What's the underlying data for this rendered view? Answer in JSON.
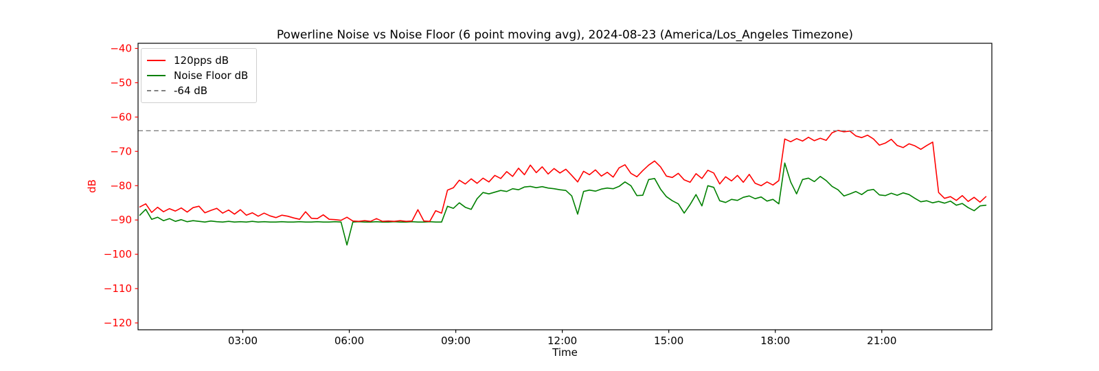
{
  "figure": {
    "title": "Powerline Noise vs Noise Floor (6 point moving avg), 2024-08-23 (America/Los_Angeles Timezone)"
  },
  "chart_data": {
    "type": "line",
    "title": "Powerline Noise vs Noise Floor (6 point moving avg), 2024-08-23 (America/Los_Angeles Timezone)",
    "xlabel": "Time",
    "ylabel": "dB",
    "grid": false,
    "legend_position": "upper left",
    "xlim_hours": [
      0.05,
      24.1
    ],
    "ylim": [
      -122,
      -38.5
    ],
    "x_ticks": [
      {
        "hour": 3,
        "label": "03:00"
      },
      {
        "hour": 6,
        "label": "06:00"
      },
      {
        "hour": 9,
        "label": "09:00"
      },
      {
        "hour": 12,
        "label": "12:00"
      },
      {
        "hour": 15,
        "label": "15:00"
      },
      {
        "hour": 18,
        "label": "18:00"
      },
      {
        "hour": 21,
        "label": "21:00"
      }
    ],
    "y_ticks": [
      {
        "value": -40,
        "label": "−40"
      },
      {
        "value": -50,
        "label": "−50"
      },
      {
        "value": -60,
        "label": "−60"
      },
      {
        "value": -70,
        "label": "−70"
      },
      {
        "value": -80,
        "label": "−80"
      },
      {
        "value": -90,
        "label": "−90"
      },
      {
        "value": -100,
        "label": "−100"
      },
      {
        "value": -110,
        "label": "−110"
      },
      {
        "value": -120,
        "label": "−120"
      }
    ],
    "y_axis_color": "#ff0000",
    "x_axis_color": "#000000",
    "reference_line": {
      "value": -64,
      "label": "-64 dB",
      "color": "#808080",
      "style": "dashed"
    },
    "t_start_hours": 0.1,
    "sample_interval_minutes": 10,
    "series": [
      {
        "name": "Noise Floor dB",
        "color": "#008000",
        "values": [
          -88.6,
          -86.9,
          -89.8,
          -89.2,
          -90.2,
          -89.6,
          -90.4,
          -89.9,
          -90.5,
          -90.2,
          -90.4,
          -90.6,
          -90.3,
          -90.5,
          -90.6,
          -90.4,
          -90.6,
          -90.5,
          -90.6,
          -90.4,
          -90.6,
          -90.5,
          -90.6,
          -90.6,
          -90.5,
          -90.6,
          -90.6,
          -90.5,
          -90.6,
          -90.6,
          -90.5,
          -90.6,
          -90.6,
          -90.5,
          -90.6,
          -97.3,
          -90.6,
          -90.5,
          -90.6,
          -90.6,
          -90.5,
          -90.6,
          -90.6,
          -90.5,
          -90.6,
          -90.6,
          -90.5,
          -90.6,
          -90.6,
          -90.5,
          -90.6,
          -90.6,
          -86.0,
          -86.6,
          -85.0,
          -86.3,
          -86.9,
          -83.8,
          -82.0,
          -82.4,
          -81.9,
          -81.4,
          -81.7,
          -80.9,
          -81.2,
          -80.4,
          -80.2,
          -80.6,
          -80.3,
          -80.7,
          -80.9,
          -81.2,
          -81.4,
          -83.0,
          -88.3,
          -81.7,
          -81.3,
          -81.6,
          -81.0,
          -80.7,
          -80.9,
          -80.2,
          -78.9,
          -80.0,
          -82.9,
          -82.8,
          -78.2,
          -77.9,
          -81.0,
          -83.2,
          -84.4,
          -85.3,
          -88.0,
          -85.5,
          -82.6,
          -85.9,
          -80.0,
          -80.5,
          -84.4,
          -84.9,
          -84.0,
          -84.3,
          -83.4,
          -83.0,
          -83.8,
          -83.3,
          -84.5,
          -84.0,
          -85.3,
          -73.4,
          -78.9,
          -82.4,
          -78.2,
          -77.8,
          -78.8,
          -77.3,
          -78.5,
          -80.2,
          -81.2,
          -83.0,
          -82.4,
          -81.7,
          -82.6,
          -81.4,
          -81.1,
          -82.7,
          -82.9,
          -82.2,
          -82.8,
          -82.1,
          -82.6,
          -83.7,
          -84.7,
          -84.4,
          -85.0,
          -84.6,
          -85.1,
          -84.5,
          -85.7,
          -85.2,
          -86.4,
          -87.3,
          -85.9,
          -85.7
        ]
      },
      {
        "name": "120pps dB",
        "color": "#ff0000",
        "values": [
          -86.2,
          -85.3,
          -87.8,
          -86.3,
          -87.6,
          -86.7,
          -87.4,
          -86.5,
          -87.7,
          -86.4,
          -86.0,
          -87.9,
          -87.2,
          -86.6,
          -88.0,
          -87.1,
          -88.3,
          -87.0,
          -88.6,
          -87.9,
          -88.9,
          -88.0,
          -88.8,
          -89.3,
          -88.6,
          -88.9,
          -89.4,
          -89.8,
          -87.6,
          -89.5,
          -89.6,
          -88.5,
          -89.8,
          -89.9,
          -90.1,
          -89.2,
          -90.3,
          -90.4,
          -90.2,
          -90.4,
          -89.6,
          -90.4,
          -90.3,
          -90.4,
          -90.2,
          -90.4,
          -90.3,
          -87.0,
          -90.3,
          -90.4,
          -87.3,
          -88.0,
          -81.3,
          -80.6,
          -78.4,
          -79.5,
          -78.0,
          -79.3,
          -77.8,
          -78.9,
          -77.0,
          -77.9,
          -75.9,
          -77.3,
          -74.9,
          -76.8,
          -74.0,
          -76.2,
          -74.5,
          -76.6,
          -75.0,
          -76.3,
          -75.2,
          -77.0,
          -78.9,
          -75.8,
          -76.8,
          -75.4,
          -77.2,
          -76.1,
          -77.5,
          -74.8,
          -73.9,
          -76.4,
          -77.4,
          -75.6,
          -74.0,
          -72.8,
          -74.5,
          -77.2,
          -77.6,
          -76.4,
          -78.3,
          -79.0,
          -76.5,
          -77.9,
          -75.5,
          -76.3,
          -79.5,
          -77.4,
          -78.6,
          -77.0,
          -79.0,
          -76.7,
          -79.3,
          -80.0,
          -78.9,
          -79.8,
          -78.5,
          -66.4,
          -67.2,
          -66.3,
          -67.0,
          -65.9,
          -66.9,
          -66.2,
          -66.8,
          -64.6,
          -63.9,
          -64.3,
          -64.1,
          -65.5,
          -66.0,
          -65.3,
          -66.4,
          -68.2,
          -67.6,
          -66.5,
          -68.3,
          -68.9,
          -67.8,
          -68.4,
          -69.4,
          -68.3,
          -67.3,
          -82.0,
          -83.7,
          -83.2,
          -84.3,
          -82.9,
          -84.6,
          -83.4,
          -84.8,
          -83.2
        ]
      }
    ]
  }
}
